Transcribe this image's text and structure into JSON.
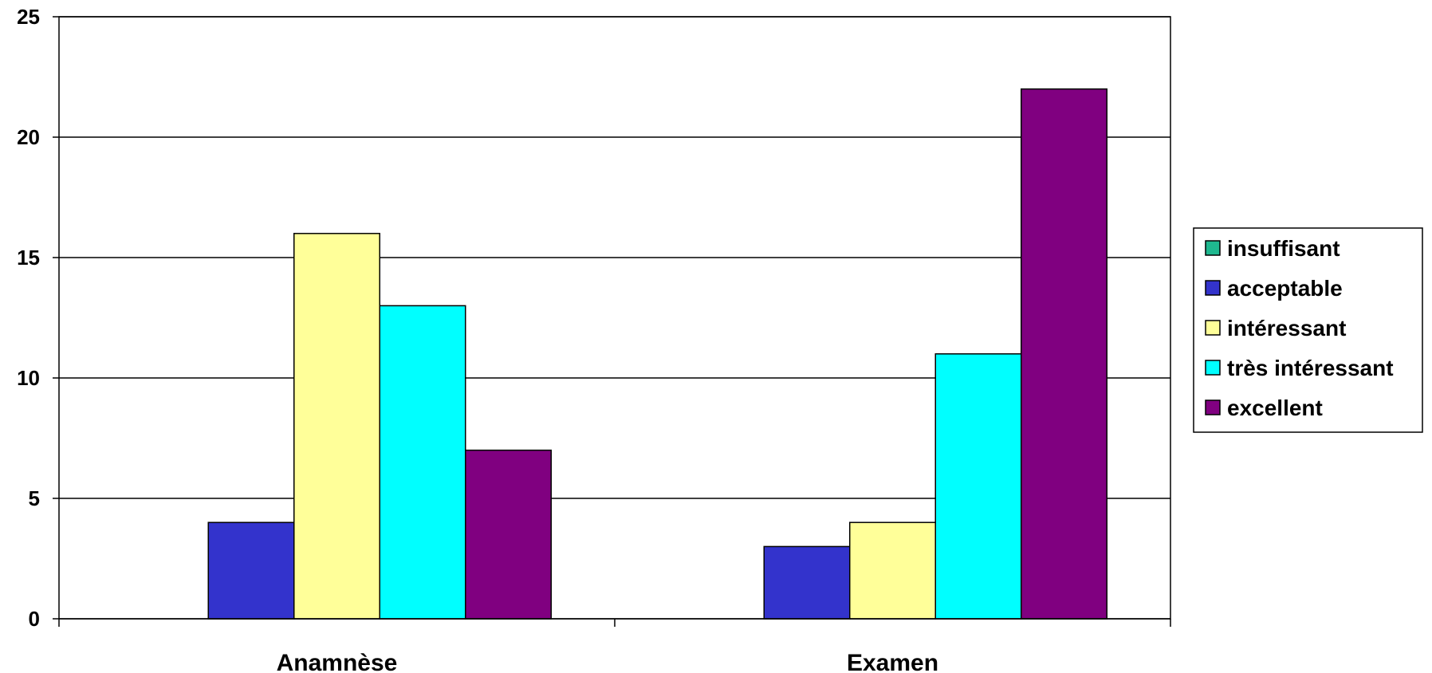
{
  "chart_data": {
    "type": "bar",
    "categories": [
      "Anamnèse",
      "Examen"
    ],
    "series": [
      {
        "name": "insuffisant",
        "values": [
          0,
          0
        ],
        "color": "#1FB88F"
      },
      {
        "name": "acceptable",
        "values": [
          4,
          3
        ],
        "color": "#3333CC"
      },
      {
        "name": "intéressant",
        "values": [
          16,
          4
        ],
        "color": "#FFFF99"
      },
      {
        "name": "très intéressant",
        "values": [
          13,
          11
        ],
        "color": "#00FFFF"
      },
      {
        "name": "excellent",
        "values": [
          7,
          22
        ],
        "color": "#800080"
      }
    ],
    "ylim": [
      0,
      25
    ],
    "yticks": [
      0,
      5,
      10,
      15,
      20,
      25
    ],
    "grid": true,
    "legend_position": "right"
  }
}
